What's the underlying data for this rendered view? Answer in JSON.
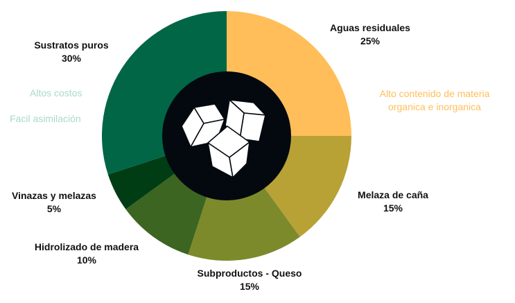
{
  "chart_data": {
    "type": "pie",
    "variant": "donut",
    "title": "",
    "slices": [
      {
        "label": "Aguas residuales",
        "value": 25,
        "value_label": "25%",
        "color": "#ffbe5a"
      },
      {
        "label": "Melaza de caña",
        "value": 15,
        "value_label": "15%",
        "color": "#b8a236"
      },
      {
        "label": "Subproductos - Queso",
        "value": 15,
        "value_label": "15%",
        "color": "#7c8a2c"
      },
      {
        "label": "Hidrolizado de madera",
        "value": 10,
        "value_label": "10%",
        "color": "#3d6522"
      },
      {
        "label": "Vinazas y melazas",
        "value": 5,
        "value_label": "5%",
        "color": "#013d14"
      },
      {
        "label": "Sustratos puros",
        "value": 30,
        "value_label": "30%",
        "color": "#006646"
      }
    ],
    "annotations": {
      "sustratos_puros": {
        "lines": [
          "Altos costos",
          "Facil asimilación"
        ],
        "color": "#a9d9c9"
      },
      "aguas_residuales": {
        "lines": [
          "Alto contenido de materia",
          "organica e inorganica"
        ],
        "color": "#ffbe5a"
      }
    },
    "center": {
      "color": "#03090f",
      "icon": "sugar-cubes-icon"
    }
  }
}
